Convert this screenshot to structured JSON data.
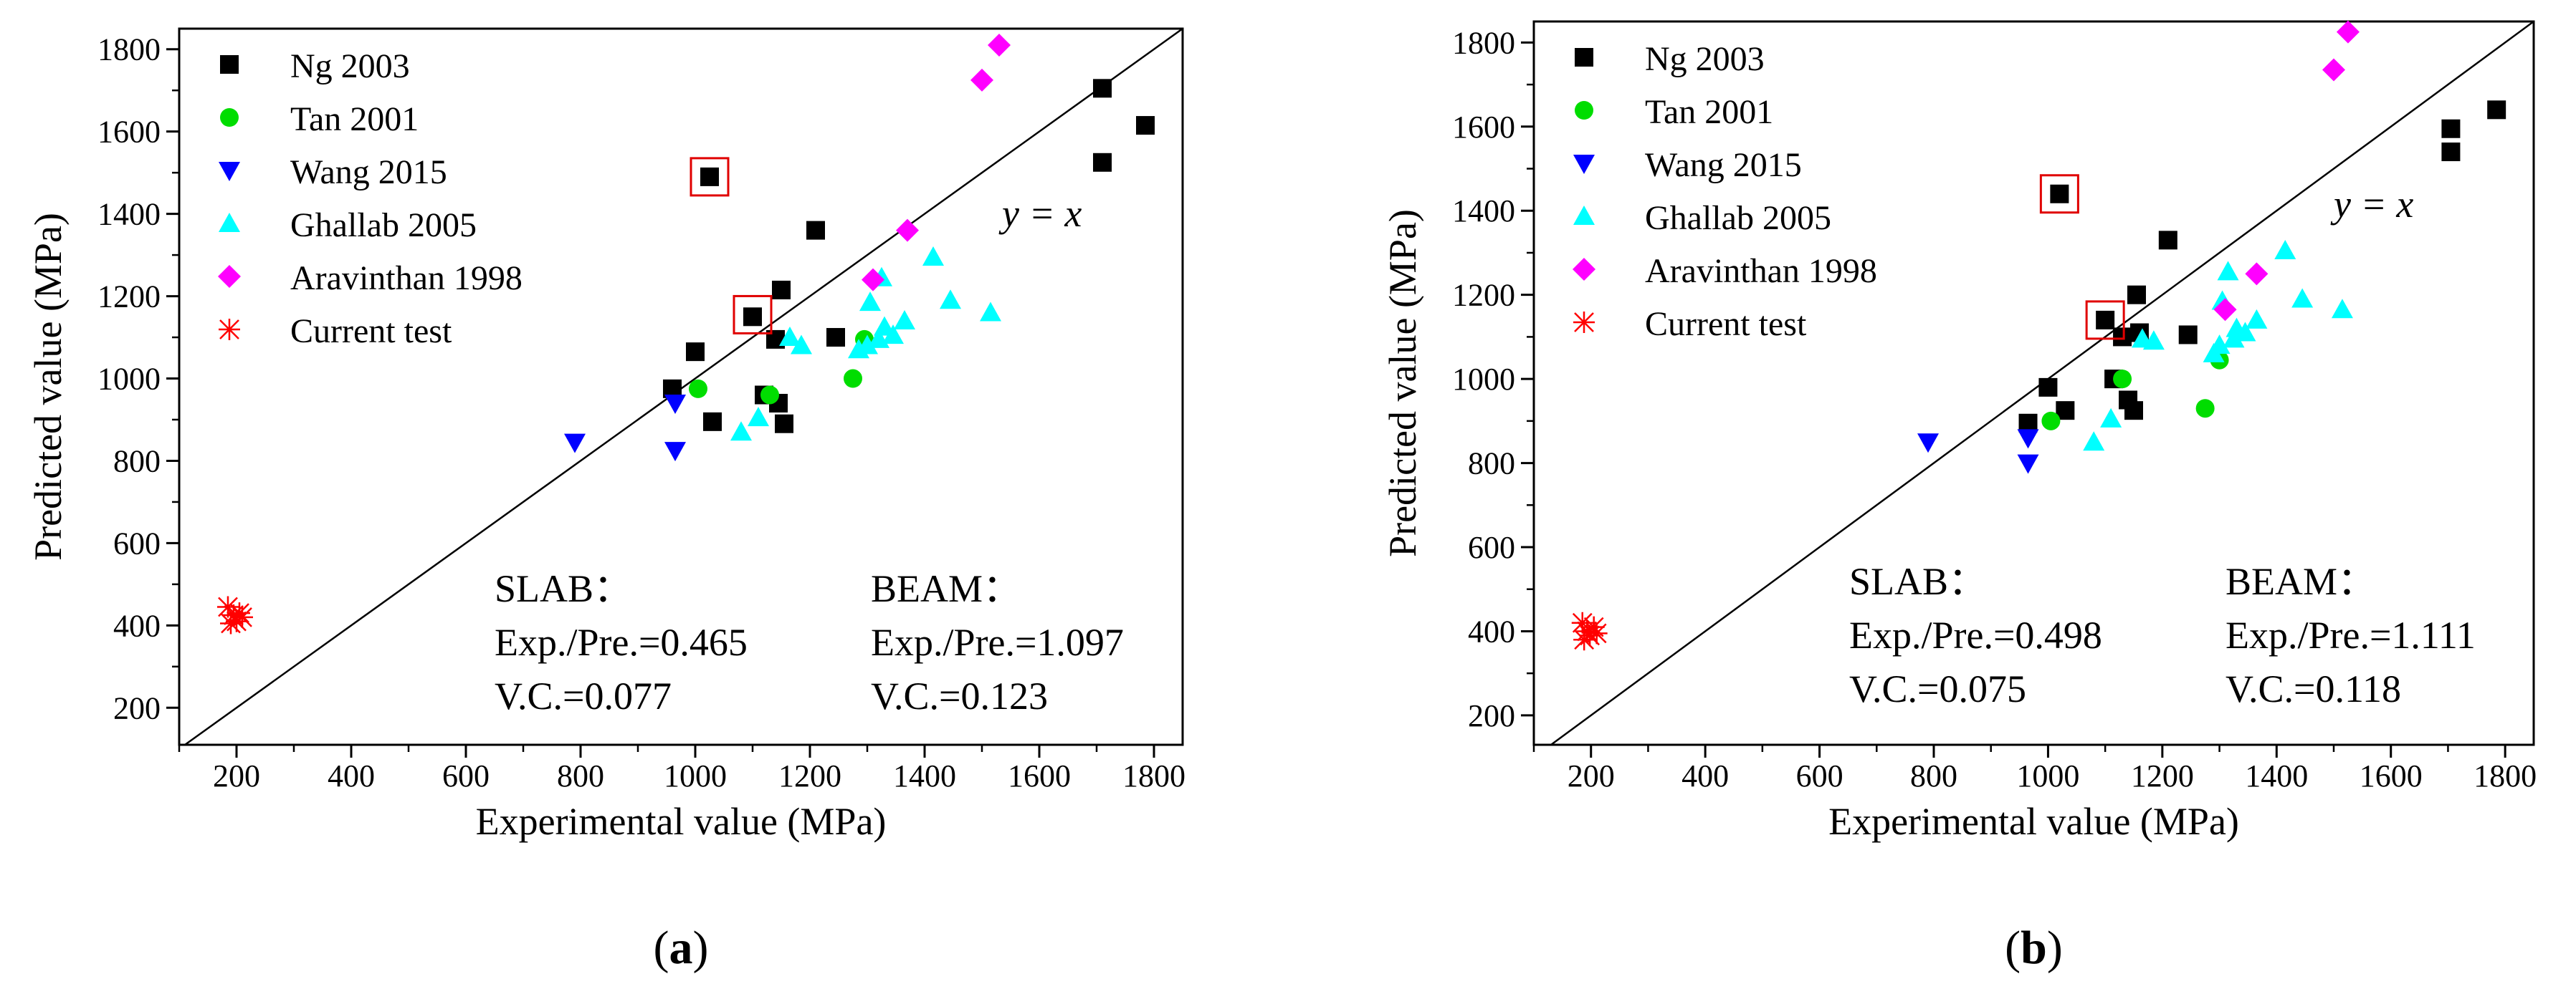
{
  "chart_data": [
    {
      "panel_label_open": "(",
      "panel_label": "a",
      "panel_label_close": ")",
      "type": "scatter",
      "xlabel": "Experimental value (MPa)",
      "ylabel": "Predicted  value (MPa)",
      "xlim": [
        100,
        1850
      ],
      "ylim": [
        110,
        1850
      ],
      "xticks": [
        200,
        400,
        600,
        800,
        1000,
        1200,
        1400,
        1600,
        1800
      ],
      "yticks": [
        200,
        400,
        600,
        800,
        1000,
        1200,
        1400,
        1600,
        1800
      ],
      "reference_line": {
        "label": "y = x",
        "from": [
          100,
          100
        ],
        "to": [
          1850,
          1850
        ],
        "label_at": [
          1535,
          1370
        ]
      },
      "series": [
        {
          "name": "Ng 2003",
          "marker": "square",
          "color": "#000000",
          "points": [
            [
              960,
              975
            ],
            [
              1000,
              1065
            ],
            [
              1025,
              1490
            ],
            [
              1030,
              895
            ],
            [
              1100,
              1150
            ],
            [
              1120,
              960
            ],
            [
              1140,
              1095
            ],
            [
              1145,
              940
            ],
            [
              1150,
              1215
            ],
            [
              1155,
              890
            ],
            [
              1210,
              1360
            ],
            [
              1245,
              1100
            ],
            [
              1710,
              1705
            ],
            [
              1710,
              1525
            ],
            [
              1785,
              1615
            ]
          ]
        },
        {
          "name": "Tan 2001",
          "marker": "circle",
          "color": "#00dd00",
          "points": [
            [
              1005,
              975
            ],
            [
              1130,
              960
            ],
            [
              1275,
              1000
            ],
            [
              1295,
              1095
            ]
          ]
        },
        {
          "name": "Wang 2015",
          "marker": "triangle-down",
          "color": "#0000ff",
          "points": [
            [
              790,
              845
            ],
            [
              965,
              940
            ],
            [
              965,
              825
            ]
          ]
        },
        {
          "name": "Ghallab 2005",
          "marker": "triangle-up",
          "color": "#00ffff",
          "points": [
            [
              1080,
              870
            ],
            [
              1110,
              905
            ],
            [
              1165,
              1100
            ],
            [
              1185,
              1080
            ],
            [
              1285,
              1070
            ],
            [
              1300,
              1080
            ],
            [
              1305,
              1185
            ],
            [
              1320,
              1095
            ],
            [
              1325,
              1245
            ],
            [
              1330,
              1125
            ],
            [
              1345,
              1105
            ],
            [
              1365,
              1140
            ],
            [
              1415,
              1295
            ],
            [
              1445,
              1190
            ],
            [
              1515,
              1160
            ]
          ]
        },
        {
          "name": "Aravinthan 1998",
          "marker": "diamond",
          "color": "#ff00ff",
          "points": [
            [
              1310,
              1240
            ],
            [
              1370,
              1360
            ],
            [
              1500,
              1725
            ],
            [
              1530,
              1810
            ]
          ]
        },
        {
          "name": "Current test",
          "marker": "star-x",
          "color": "#ff0000",
          "points": [
            [
              185,
              445
            ],
            [
              190,
              405
            ],
            [
              195,
              425
            ],
            [
              200,
              410
            ],
            [
              205,
              430
            ],
            [
              210,
              420
            ]
          ]
        }
      ],
      "highlighted_points": [
        [
          1025,
          1490
        ],
        [
          1100,
          1155
        ]
      ],
      "annotations": {
        "slab_title": "SLAB：",
        "slab_ratio": "Exp./Pre.=0.465",
        "slab_vc": "V.C.=0.077",
        "beam_title": "BEAM：",
        "beam_ratio": "Exp./Pre.=1.097",
        "beam_vc": "V.C.=0.123"
      }
    },
    {
      "panel_label_open": "(",
      "panel_label": "b",
      "panel_label_close": ")",
      "type": "scatter",
      "xlabel": "Experimental value (MPa)",
      "ylabel": "Predicted value (MPa)",
      "xlim": [
        100,
        1850
      ],
      "ylim": [
        130,
        1850
      ],
      "xticks": [
        200,
        400,
        600,
        800,
        1000,
        1200,
        1400,
        1600,
        1800
      ],
      "yticks": [
        200,
        400,
        600,
        800,
        1000,
        1200,
        1400,
        1600,
        1800
      ],
      "reference_line": {
        "label": "y = x",
        "from": [
          100,
          100
        ],
        "to": [
          1850,
          1850
        ],
        "label_at": [
          1500,
          1385
        ]
      },
      "series": [
        {
          "name": "Ng 2003",
          "marker": "square",
          "color": "#000000",
          "points": [
            [
              965,
              895
            ],
            [
              1000,
              980
            ],
            [
              1020,
              1440
            ],
            [
              1030,
              925
            ],
            [
              1100,
              1140
            ],
            [
              1115,
              1000
            ],
            [
              1130,
              1100
            ],
            [
              1140,
              950
            ],
            [
              1150,
              925
            ],
            [
              1155,
              1200
            ],
            [
              1160,
              1110
            ],
            [
              1210,
              1330
            ],
            [
              1245,
              1105
            ],
            [
              1705,
              1595
            ],
            [
              1705,
              1540
            ],
            [
              1785,
              1640
            ]
          ]
        },
        {
          "name": "Tan 2001",
          "marker": "circle",
          "color": "#00dd00",
          "points": [
            [
              1005,
              900
            ],
            [
              1130,
              1000
            ],
            [
              1275,
              930
            ],
            [
              1300,
              1045
            ]
          ]
        },
        {
          "name": "Wang 2015",
          "marker": "triangle-down",
          "color": "#0000ff",
          "points": [
            [
              790,
              850
            ],
            [
              965,
              860
            ],
            [
              965,
              800
            ]
          ]
        },
        {
          "name": "Ghallab 2005",
          "marker": "triangle-up",
          "color": "#00ffff",
          "points": [
            [
              1080,
              850
            ],
            [
              1110,
              905
            ],
            [
              1165,
              1095
            ],
            [
              1185,
              1090
            ],
            [
              1290,
              1060
            ],
            [
              1300,
              1080
            ],
            [
              1305,
              1185
            ],
            [
              1315,
              1255
            ],
            [
              1325,
              1095
            ],
            [
              1330,
              1120
            ],
            [
              1345,
              1110
            ],
            [
              1365,
              1140
            ],
            [
              1415,
              1305
            ],
            [
              1445,
              1190
            ],
            [
              1515,
              1165
            ]
          ]
        },
        {
          "name": "Aravinthan 1998",
          "marker": "diamond",
          "color": "#ff00ff",
          "points": [
            [
              1310,
              1165
            ],
            [
              1365,
              1250
            ],
            [
              1500,
              1735
            ],
            [
              1525,
              1825
            ]
          ]
        },
        {
          "name": "Current test",
          "marker": "star-x",
          "color": "#ff0000",
          "points": [
            [
              185,
              420
            ],
            [
              188,
              380
            ],
            [
              193,
              400
            ],
            [
              198,
              390
            ],
            [
              205,
              410
            ],
            [
              210,
              395
            ]
          ]
        }
      ],
      "highlighted_points": [
        [
          1020,
          1440
        ],
        [
          1100,
          1140
        ]
      ],
      "annotations": {
        "slab_title": "SLAB：",
        "slab_ratio": "Exp./Pre.=0.498",
        "slab_vc": "V.C.=0.075",
        "beam_title": "BEAM：",
        "beam_ratio": "Exp./Pre.=1.111",
        "beam_vc": "V.C.=0.118"
      }
    }
  ]
}
